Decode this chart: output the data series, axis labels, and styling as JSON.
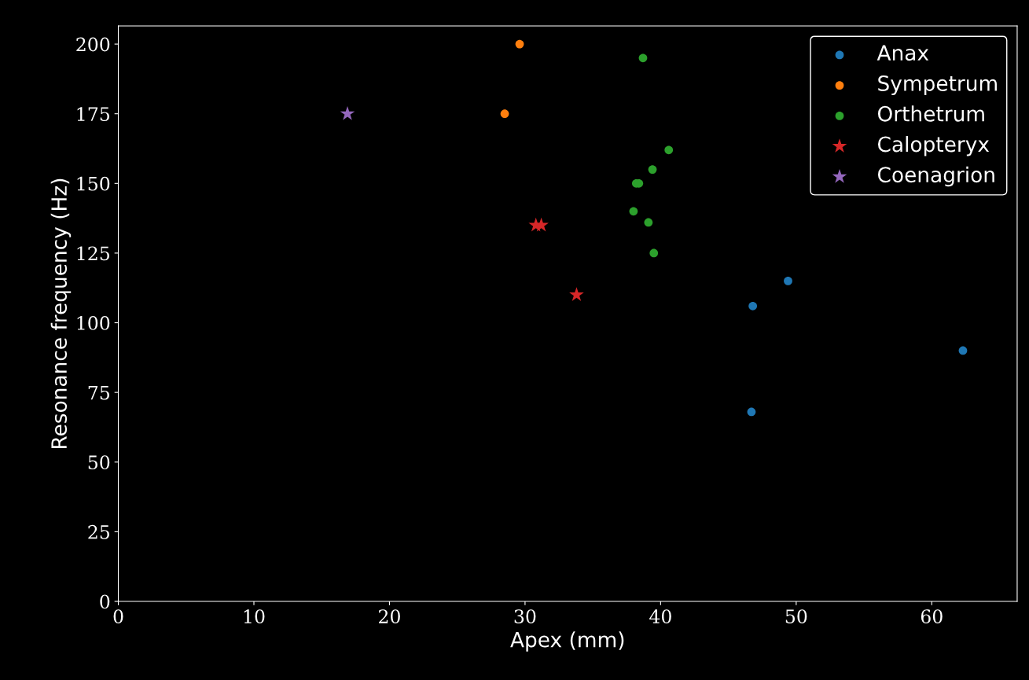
{
  "chart_data": {
    "type": "scatter",
    "xlabel": "Apex (mm)",
    "ylabel": "Resonance frequency (Hz)",
    "xlim": [
      0,
      66.3
    ],
    "ylim": [
      0,
      206.5
    ],
    "xticks": [
      0,
      10,
      20,
      30,
      40,
      50,
      60
    ],
    "yticks": [
      0,
      25,
      50,
      75,
      100,
      125,
      150,
      175,
      200
    ],
    "grid": false,
    "legend": "top right",
    "series": [
      {
        "name": "Anax",
        "color": "#1f77b4",
        "marker": "circle",
        "x": [
          46.8,
          49.4,
          46.7,
          62.3
        ],
        "values": [
          106,
          115,
          68,
          90
        ]
      },
      {
        "name": "Sympetrum",
        "color": "#ff7f0e",
        "marker": "circle",
        "x": [
          29.6,
          28.5
        ],
        "values": [
          200,
          175
        ]
      },
      {
        "name": "Orthetrum",
        "color": "#2ca02c",
        "marker": "circle",
        "x": [
          38.7,
          40.6,
          39.4,
          38.2,
          38.4,
          38.0,
          39.1,
          39.5
        ],
        "values": [
          195,
          162,
          155,
          150,
          150,
          140,
          136,
          125
        ]
      },
      {
        "name": "Calopteryx",
        "color": "#d62728",
        "marker": "star",
        "x": [
          30.8,
          31.2,
          33.8
        ],
        "values": [
          135,
          135,
          110
        ]
      },
      {
        "name": "Coenagrion",
        "color": "#9467bd",
        "marker": "star",
        "x": [
          16.9
        ],
        "values": [
          175
        ]
      }
    ]
  }
}
